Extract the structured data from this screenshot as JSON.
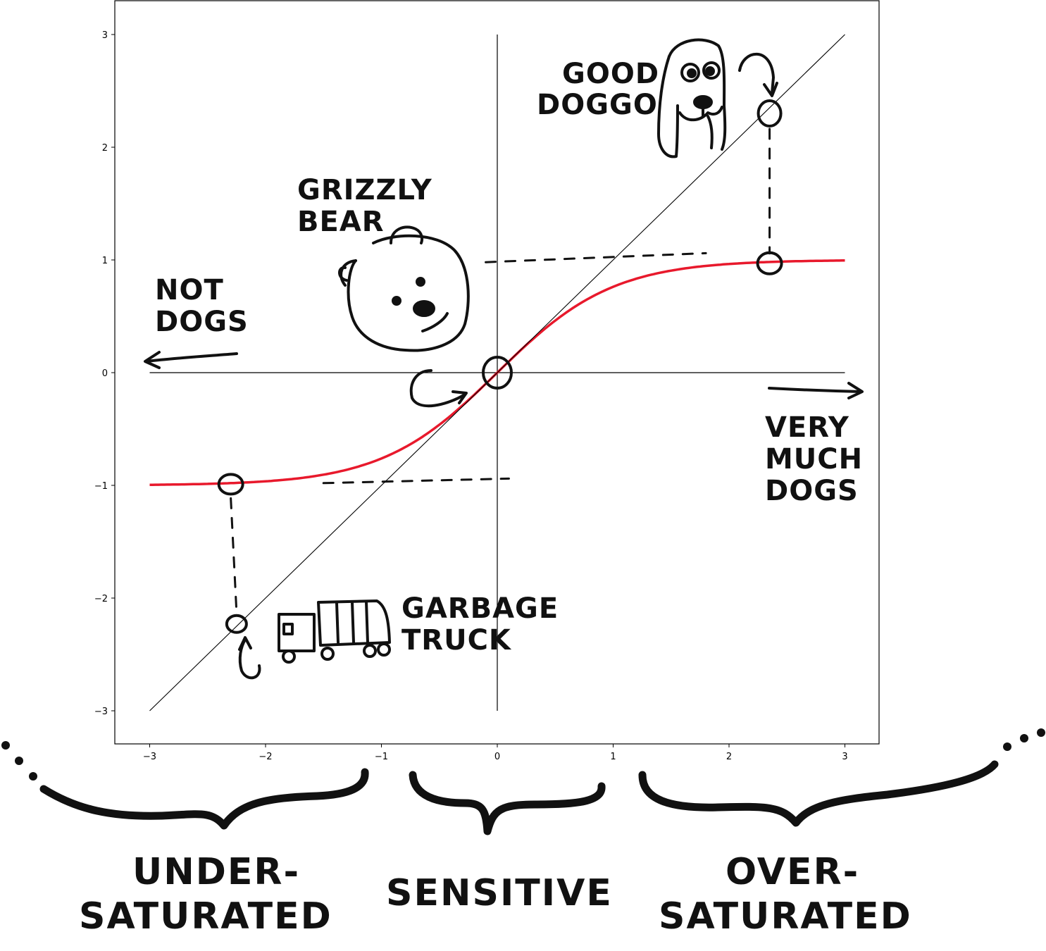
{
  "chart_data": {
    "type": "line",
    "title": "",
    "xlabel": "",
    "ylabel": "",
    "xlim": [
      -3.3,
      3.3
    ],
    "ylim": [
      -3.3,
      3.3
    ],
    "x_ticks": [
      -3,
      -2,
      -1,
      0,
      1,
      2,
      3
    ],
    "y_ticks": [
      -3,
      -2,
      -1,
      0,
      1,
      2,
      3
    ],
    "x_tick_labels": [
      "−3",
      "−2",
      "−1",
      "0",
      "1",
      "2",
      "3"
    ],
    "y_tick_labels": [
      "−3",
      "−2",
      "−1",
      "0",
      "1",
      "2",
      "3"
    ],
    "grid": false,
    "series": [
      {
        "color": "#e8192c",
        "x": [
          -3,
          -2.5,
          -2,
          -1.5,
          -1,
          -0.75,
          -0.5,
          -0.25,
          0,
          0.25,
          0.5,
          0.75,
          1,
          1.5,
          2,
          2.5,
          3
        ],
        "y": [
          -0.995,
          -0.987,
          -0.964,
          -0.905,
          -0.762,
          -0.635,
          -0.462,
          -0.245,
          0,
          0.245,
          0.462,
          0.635,
          0.762,
          0.905,
          0.964,
          0.987,
          0.995
        ]
      },
      {
        "color": "#000000",
        "x": [
          -3,
          3
        ],
        "y": [
          -3,
          3
        ]
      }
    ],
    "points": [
      {
        "x": 2.35,
        "y": 2.3
      },
      {
        "x": 2.35,
        "y": 0.97
      },
      {
        "x": 0,
        "y": 0
      },
      {
        "x": -2.3,
        "y": -0.99
      },
      {
        "x": -2.25,
        "y": -2.23
      }
    ],
    "annotations": {
      "good_doggo": [
        "GOOD",
        "DOGGO"
      ],
      "grizzly_bear": [
        "GRIZZLY",
        "BEAR"
      ],
      "not_dogs": [
        "NOT",
        "DOGS"
      ],
      "very_much_dogs": [
        "VERY",
        "MUCH",
        "DOGS"
      ],
      "garbage_truck": [
        "GARBAGE",
        "TRUCK"
      ],
      "under_saturated": [
        "UNDER-",
        "SATURATED"
      ],
      "sensitive": [
        "SENSITIVE"
      ],
      "over_saturated": [
        "OVER-",
        "SATURATED"
      ]
    }
  }
}
